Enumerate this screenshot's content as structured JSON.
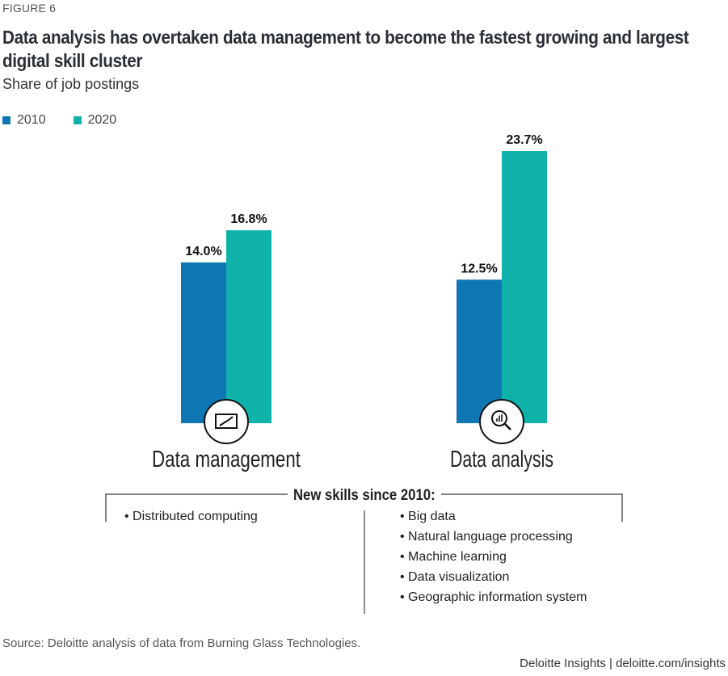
{
  "figure_label": "FIGURE 6",
  "title": "Data analysis has overtaken data management to become the fastest growing and largest digital skill cluster",
  "subtitle": "Share of job postings",
  "colors": {
    "2010": "#0f76b4",
    "2020": "#10b3aa"
  },
  "chart_data": {
    "type": "bar",
    "title": "Data analysis has overtaken data management to become the fastest growing and largest digital skill cluster",
    "subtitle": "Share of job postings",
    "categories": [
      "Data management",
      "Data analysis"
    ],
    "category_icons": [
      "chart-monitor-icon",
      "magnifier-chart-icon"
    ],
    "series": [
      {
        "name": "2010",
        "values": [
          14.0,
          12.5
        ],
        "labels": [
          "14.0%",
          "12.5%"
        ]
      },
      {
        "name": "2020",
        "values": [
          16.8,
          23.7
        ],
        "labels": [
          "16.8%",
          "23.7%"
        ]
      }
    ],
    "xlabel": "",
    "ylabel": "Share of job postings (%)",
    "ylim": [
      0,
      23.7
    ],
    "grid": false,
    "legend": "top-left"
  },
  "new_skills": {
    "heading": "New skills since 2010:",
    "data_management": [
      "Distributed computing"
    ],
    "data_analysis": [
      "Big data",
      "Natural language processing",
      "Machine learning",
      "Data visualization",
      "Geographic information system"
    ]
  },
  "source": "Source: Deloitte analysis of data from Burning Glass Technologies.",
  "credit": "Deloitte Insights | deloitte.com/insights"
}
